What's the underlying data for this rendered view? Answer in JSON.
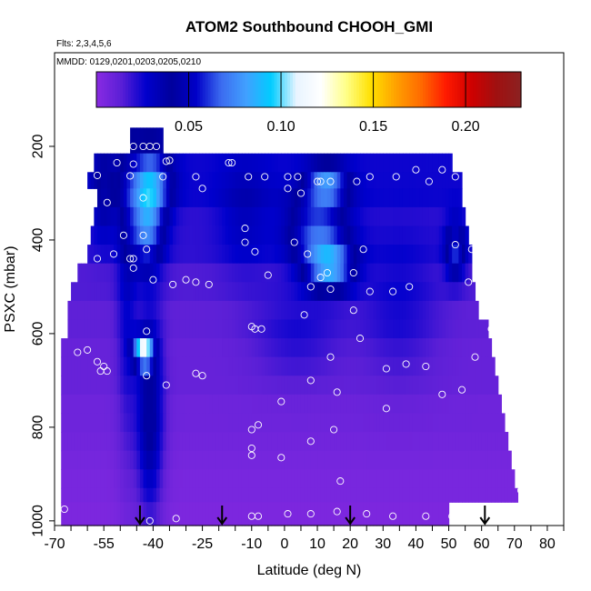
{
  "chart_data": {
    "type": "heatmap",
    "title": "ATOM2 Southbound CHOOH_GMI",
    "flights_note": "Flts: 2,3,4,5,6",
    "dates_note": "MMDD: 0129,0201,0203,0205,0210",
    "xlabel": "Latitude (deg N)",
    "ylabel": "PSXC (mbar)",
    "xlim": [
      -70,
      85
    ],
    "ylim": [
      1010,
      0
    ],
    "x_ticks": [
      -70,
      -55,
      -40,
      -25,
      -10,
      0,
      10,
      20,
      30,
      40,
      50,
      60,
      70,
      80
    ],
    "x_tick_labels": [
      "-70",
      "-55",
      "-40",
      "-25",
      "-10",
      "0",
      "10",
      "20",
      "30",
      "40",
      "50",
      "60",
      "70",
      "80"
    ],
    "y_ticks": [
      200,
      400,
      600,
      800,
      1000
    ],
    "y_tick_labels": [
      "200",
      "400",
      "600",
      "800",
      "1000"
    ],
    "colorbar": {
      "range": [
        0,
        0.23
      ],
      "ticks": [
        0.05,
        0.1,
        0.15,
        0.2
      ],
      "tick_labels": [
        "0.05",
        "0.10",
        "0.15",
        "0.20"
      ],
      "colors": [
        "#8a2be2",
        "#5a1fd6",
        "#0000cd",
        "#00009c",
        "#0000c8",
        "#3c6cf0",
        "#41a0ff",
        "#00ccff",
        "#e8f4ff",
        "#ffffff",
        "#ffff88",
        "#ffe000",
        "#ffa000",
        "#ff6a00",
        "#ff1a00",
        "#d00000",
        "#a01010",
        "#8b2222"
      ]
    },
    "rows": [
      {
        "p_top": 160,
        "p_bot": 215,
        "lat_start": -47,
        "lat_end": -37,
        "base": 0.03
      },
      {
        "p_top": 215,
        "p_bot": 255,
        "lat_start": -58,
        "lat_end": 51,
        "base": 0.025
      },
      {
        "p_top": 255,
        "p_bot": 290,
        "lat_start": -60,
        "lat_end": 54,
        "base": 0.025
      },
      {
        "p_top": 290,
        "p_bot": 330,
        "lat_start": -57,
        "lat_end": 54,
        "base": 0.025
      },
      {
        "p_top": 330,
        "p_bot": 370,
        "lat_start": -58,
        "lat_end": 55,
        "base": 0.02
      },
      {
        "p_top": 370,
        "p_bot": 410,
        "lat_start": -59,
        "lat_end": 56,
        "base": 0.02
      },
      {
        "p_top": 410,
        "p_bot": 450,
        "lat_start": -60,
        "lat_end": 57,
        "base": 0.02
      },
      {
        "p_top": 450,
        "p_bot": 490,
        "lat_start": -63,
        "lat_end": 57,
        "base": 0.015
      },
      {
        "p_top": 490,
        "p_bot": 530,
        "lat_start": -65,
        "lat_end": 58,
        "base": 0.015
      },
      {
        "p_top": 530,
        "p_bot": 570,
        "lat_start": -66,
        "lat_end": 59,
        "base": 0.012
      },
      {
        "p_top": 570,
        "p_bot": 610,
        "lat_start": -66,
        "lat_end": 62,
        "base": 0.012
      },
      {
        "p_top": 610,
        "p_bot": 650,
        "lat_start": -68,
        "lat_end": 63,
        "base": 0.01
      },
      {
        "p_top": 650,
        "p_bot": 690,
        "lat_start": -68,
        "lat_end": 64,
        "base": 0.01
      },
      {
        "p_top": 690,
        "p_bot": 730,
        "lat_start": -68,
        "lat_end": 65,
        "base": 0.01
      },
      {
        "p_top": 730,
        "p_bot": 770,
        "lat_start": -68,
        "lat_end": 66,
        "base": 0.008
      },
      {
        "p_top": 770,
        "p_bot": 810,
        "lat_start": -68,
        "lat_end": 67,
        "base": 0.008
      },
      {
        "p_top": 810,
        "p_bot": 850,
        "lat_start": -68,
        "lat_end": 68,
        "base": 0.007
      },
      {
        "p_top": 850,
        "p_bot": 890,
        "lat_start": -68,
        "lat_end": 69,
        "base": 0.006
      },
      {
        "p_top": 890,
        "p_bot": 930,
        "lat_start": -68,
        "lat_end": 70,
        "base": 0.005
      },
      {
        "p_top": 930,
        "p_bot": 960,
        "lat_start": -68,
        "lat_end": 71,
        "base": 0.005
      },
      {
        "p_top": 960,
        "p_bot": 1010,
        "lat_start": -68,
        "lat_end": 50,
        "base": 0.004
      }
    ],
    "features": [
      {
        "lat": -41,
        "p": 280,
        "dlat": 6,
        "dp": 70,
        "amp": 0.06
      },
      {
        "lat": -42,
        "p": 380,
        "dlat": 5,
        "dp": 80,
        "amp": 0.05
      },
      {
        "lat": -43,
        "p": 640,
        "dlat": 3,
        "dp": 30,
        "amp": 0.1
      },
      {
        "lat": -41,
        "p": 780,
        "dlat": 4,
        "dp": 220,
        "amp": 0.035
      },
      {
        "lat": 13,
        "p": 280,
        "dlat": 6,
        "dp": 40,
        "amp": 0.05
      },
      {
        "lat": 10,
        "p": 380,
        "dlat": 9,
        "dp": 80,
        "amp": 0.045
      },
      {
        "lat": 14,
        "p": 460,
        "dlat": 7,
        "dp": 50,
        "amp": 0.06
      },
      {
        "lat": 4,
        "p": 600,
        "dlat": 14,
        "dp": 100,
        "amp": 0.012
      },
      {
        "lat": 52,
        "p": 420,
        "dlat": 3,
        "dp": 60,
        "amp": 0.04
      },
      {
        "lat": -55,
        "p": 300,
        "dlat": 4,
        "dp": 100,
        "amp": 0.02
      },
      {
        "lat": -12,
        "p": 350,
        "dlat": 8,
        "dp": 120,
        "amp": 0.012
      },
      {
        "lat": 35,
        "p": 550,
        "dlat": 12,
        "dp": 150,
        "amp": 0.012
      },
      {
        "lat": -48,
        "p": 500,
        "dlat": 3,
        "dp": 400,
        "amp": 0.015
      }
    ],
    "samples": [
      {
        "lat": -46,
        "p": 200
      },
      {
        "lat": -43,
        "p": 200
      },
      {
        "lat": -41,
        "p": 200
      },
      {
        "lat": -39,
        "p": 200
      },
      {
        "lat": -36,
        "p": 232
      },
      {
        "lat": -51,
        "p": 235
      },
      {
        "lat": -46,
        "p": 238
      },
      {
        "lat": -35,
        "p": 230
      },
      {
        "lat": -17,
        "p": 235
      },
      {
        "lat": -16,
        "p": 235
      },
      {
        "lat": -63,
        "p": 262
      },
      {
        "lat": -57,
        "p": 262
      },
      {
        "lat": -47,
        "p": 263
      },
      {
        "lat": -37,
        "p": 265
      },
      {
        "lat": -27,
        "p": 265
      },
      {
        "lat": -11,
        "p": 265
      },
      {
        "lat": -6,
        "p": 265
      },
      {
        "lat": 1,
        "p": 265
      },
      {
        "lat": 4,
        "p": 265
      },
      {
        "lat": 11,
        "p": 275
      },
      {
        "lat": 10,
        "p": 275
      },
      {
        "lat": 14,
        "p": 275
      },
      {
        "lat": 22,
        "p": 275
      },
      {
        "lat": 26,
        "p": 265
      },
      {
        "lat": 34,
        "p": 265
      },
      {
        "lat": 40,
        "p": 250
      },
      {
        "lat": 48,
        "p": 250
      },
      {
        "lat": 52,
        "p": 265
      },
      {
        "lat": 58,
        "p": 275
      },
      {
        "lat": 44,
        "p": 275
      },
      {
        "lat": 1,
        "p": 290
      },
      {
        "lat": -25,
        "p": 290
      },
      {
        "lat": 5,
        "p": 300
      },
      {
        "lat": -43,
        "p": 310
      },
      {
        "lat": -54,
        "p": 320
      },
      {
        "lat": -12,
        "p": 375
      },
      {
        "lat": -12,
        "p": 405
      },
      {
        "lat": -49,
        "p": 390
      },
      {
        "lat": -43,
        "p": 390
      },
      {
        "lat": -42,
        "p": 420
      },
      {
        "lat": -52,
        "p": 430
      },
      {
        "lat": -46,
        "p": 440
      },
      {
        "lat": -57,
        "p": 440
      },
      {
        "lat": -47,
        "p": 440
      },
      {
        "lat": -46,
        "p": 460
      },
      {
        "lat": 3,
        "p": 405
      },
      {
        "lat": 7,
        "p": 430
      },
      {
        "lat": -9,
        "p": 425
      },
      {
        "lat": 24,
        "p": 420
      },
      {
        "lat": 52,
        "p": 410
      },
      {
        "lat": 57,
        "p": 420
      },
      {
        "lat": -5,
        "p": 475
      },
      {
        "lat": 13,
        "p": 470
      },
      {
        "lat": 21,
        "p": 470
      },
      {
        "lat": -40,
        "p": 485
      },
      {
        "lat": -34,
        "p": 495
      },
      {
        "lat": -30,
        "p": 485
      },
      {
        "lat": -27,
        "p": 490
      },
      {
        "lat": -23,
        "p": 495
      },
      {
        "lat": 8,
        "p": 500
      },
      {
        "lat": 11,
        "p": 480
      },
      {
        "lat": 14,
        "p": 505
      },
      {
        "lat": 26,
        "p": 510
      },
      {
        "lat": 33,
        "p": 510
      },
      {
        "lat": 38,
        "p": 500
      },
      {
        "lat": 56,
        "p": 490
      },
      {
        "lat": 6,
        "p": 560
      },
      {
        "lat": 21,
        "p": 550
      },
      {
        "lat": -10,
        "p": 585
      },
      {
        "lat": -9,
        "p": 590
      },
      {
        "lat": -7,
        "p": 590
      },
      {
        "lat": -42,
        "p": 595
      },
      {
        "lat": 63,
        "p": 590
      },
      {
        "lat": 23,
        "p": 610
      },
      {
        "lat": -60,
        "p": 635
      },
      {
        "lat": -63,
        "p": 640
      },
      {
        "lat": -57,
        "p": 660
      },
      {
        "lat": -55,
        "p": 670
      },
      {
        "lat": -56,
        "p": 680
      },
      {
        "lat": -54,
        "p": 680
      },
      {
        "lat": 14,
        "p": 650
      },
      {
        "lat": 31,
        "p": 675
      },
      {
        "lat": 37,
        "p": 665
      },
      {
        "lat": 43,
        "p": 670
      },
      {
        "lat": 58,
        "p": 650
      },
      {
        "lat": -42,
        "p": 690
      },
      {
        "lat": -27,
        "p": 685
      },
      {
        "lat": -25,
        "p": 690
      },
      {
        "lat": 8,
        "p": 700
      },
      {
        "lat": -36,
        "p": 710
      },
      {
        "lat": 16,
        "p": 725
      },
      {
        "lat": 54,
        "p": 720
      },
      {
        "lat": 48,
        "p": 730
      },
      {
        "lat": -1,
        "p": 745
      },
      {
        "lat": 31,
        "p": 760
      },
      {
        "lat": -8,
        "p": 795
      },
      {
        "lat": -10,
        "p": 805
      },
      {
        "lat": 15,
        "p": 805
      },
      {
        "lat": 8,
        "p": 830
      },
      {
        "lat": -10,
        "p": 845
      },
      {
        "lat": -10,
        "p": 860
      },
      {
        "lat": -1,
        "p": 865
      },
      {
        "lat": 17,
        "p": 915
      },
      {
        "lat": 72,
        "p": 935
      },
      {
        "lat": -67,
        "p": 975
      },
      {
        "lat": -41,
        "p": 1000
      },
      {
        "lat": -33,
        "p": 995
      },
      {
        "lat": -10,
        "p": 990
      },
      {
        "lat": -8,
        "p": 990
      },
      {
        "lat": 1,
        "p": 985
      },
      {
        "lat": 8,
        "p": 985
      },
      {
        "lat": 16,
        "p": 980
      },
      {
        "lat": 25,
        "p": 985
      },
      {
        "lat": 33,
        "p": 990
      },
      {
        "lat": 43,
        "p": 990
      },
      {
        "lat": 51,
        "p": 990
      }
    ],
    "markers": [
      {
        "lat": -44
      },
      {
        "lat": -19
      },
      {
        "lat": 20
      },
      {
        "lat": 61
      }
    ]
  }
}
